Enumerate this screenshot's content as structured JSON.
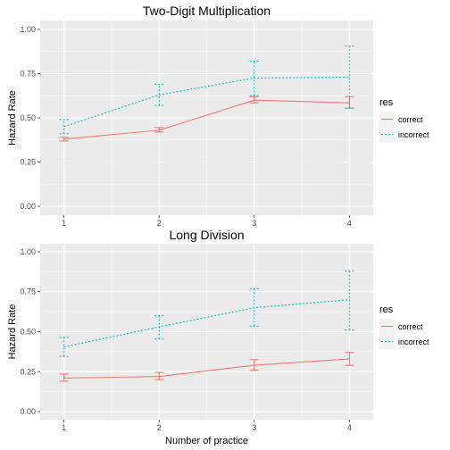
{
  "chart_data": [
    {
      "type": "line",
      "title": "Two-Digit Multiplication",
      "xlabel": "",
      "ylabel": "Hazard Rate",
      "x": [
        1,
        2,
        3,
        4
      ],
      "xticks": [
        "1",
        "2",
        "3",
        "4"
      ],
      "ylim": [
        0,
        1
      ],
      "yticks": [
        "0.00",
        "0.25",
        "0.50",
        "0.75",
        "1.00"
      ],
      "grid": true,
      "legend_title": "res",
      "legend_position": "right",
      "series": [
        {
          "name": "correct",
          "color": "#F8766D",
          "linetype": "solid",
          "values": [
            0.38,
            0.43,
            0.6,
            0.585
          ],
          "lower": [
            0.37,
            0.42,
            0.585,
            0.555
          ],
          "upper": [
            0.39,
            0.445,
            0.62,
            0.62
          ]
        },
        {
          "name": "incorrect",
          "color": "#00BFC4",
          "linetype": "dotted",
          "values": [
            0.45,
            0.63,
            0.725,
            0.73
          ],
          "lower": [
            0.41,
            0.57,
            0.625,
            0.555
          ],
          "upper": [
            0.49,
            0.69,
            0.82,
            0.905
          ]
        }
      ]
    },
    {
      "type": "line",
      "title": "Long Division",
      "xlabel": "Number of practice",
      "ylabel": "Hazard Rate",
      "x": [
        1,
        2,
        3,
        4
      ],
      "xticks": [
        "1",
        "2",
        "3",
        "4"
      ],
      "ylim": [
        0,
        1
      ],
      "yticks": [
        "0.00",
        "0.25",
        "0.50",
        "0.75",
        "1.00"
      ],
      "grid": true,
      "legend_title": "res",
      "legend_position": "right",
      "series": [
        {
          "name": "correct",
          "color": "#F8766D",
          "linetype": "solid",
          "values": [
            0.21,
            0.22,
            0.29,
            0.33
          ],
          "lower": [
            0.19,
            0.2,
            0.26,
            0.29
          ],
          "upper": [
            0.235,
            0.245,
            0.325,
            0.37
          ]
        },
        {
          "name": "incorrect",
          "color": "#00BFC4",
          "linetype": "dotted",
          "values": [
            0.405,
            0.53,
            0.65,
            0.7
          ],
          "lower": [
            0.345,
            0.455,
            0.535,
            0.51
          ],
          "upper": [
            0.465,
            0.6,
            0.77,
            0.88
          ]
        }
      ]
    }
  ]
}
